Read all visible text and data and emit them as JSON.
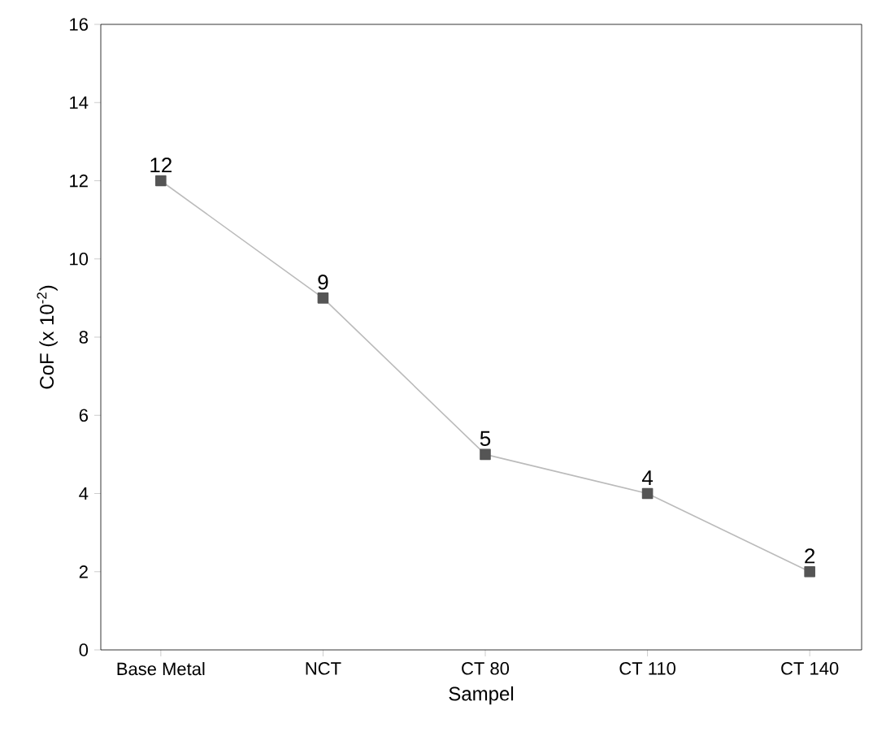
{
  "chart_data": {
    "type": "line",
    "xlabel": "Sampel",
    "ylabel": "CoF (x 10$^{-2}$)",
    "categories": [
      "Base Metal",
      "NCT",
      "CT 80",
      "CT 110",
      "CT 140"
    ],
    "series": [
      {
        "color": "#555555",
        "values": [
          12,
          9,
          5,
          4,
          2
        ],
        "value_labels": [
          "12",
          "9",
          "5",
          "4",
          "2"
        ]
      }
    ],
    "ylim": [
      0,
      16
    ],
    "yticks": [
      0,
      2,
      4,
      6,
      8,
      10,
      12,
      14,
      16
    ],
    "grid": false,
    "marker": "square",
    "line_style": "solid"
  }
}
